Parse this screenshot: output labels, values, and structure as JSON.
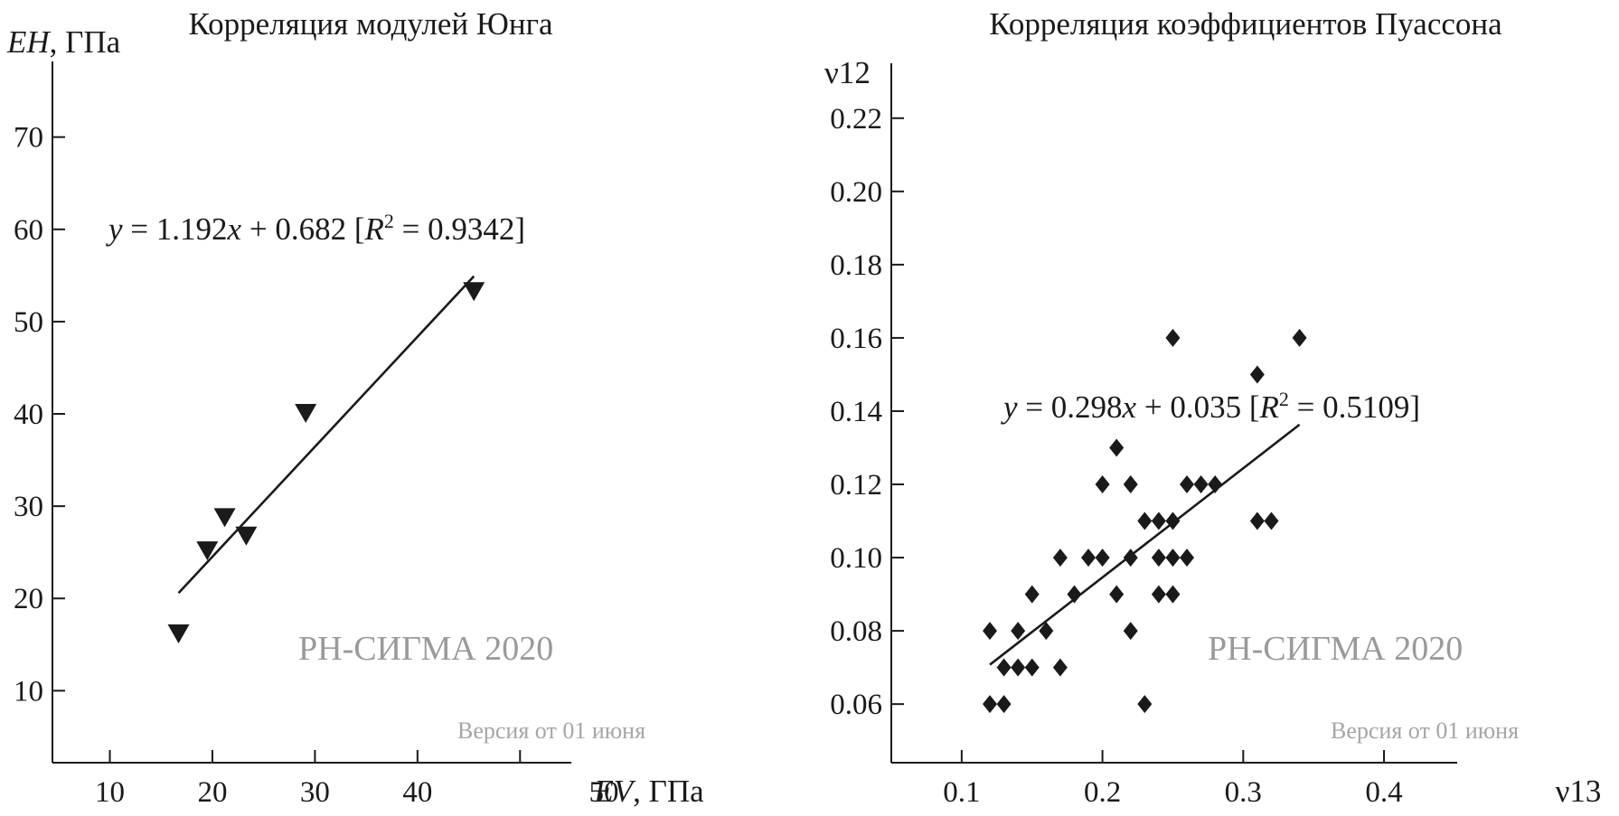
{
  "chart_data": [
    {
      "type": "scatter",
      "title": "Корреляция модулей Юнга",
      "ylabel": {
        "italic": "EH",
        "unit": ", ГПа"
      },
      "xlabel": {
        "italic": "EV",
        "unit": ", ГПа"
      },
      "xlim": [
        4.4,
        55
      ],
      "ylim": [
        2.2,
        78
      ],
      "x_ticks": [
        "10",
        "20",
        "30",
        "40",
        "50"
      ],
      "y_ticks": [
        "10",
        "20",
        "30",
        "40",
        "50",
        "60",
        "70"
      ],
      "x_tick_values": [
        10,
        20,
        30,
        40,
        50
      ],
      "y_tick_values": [
        10,
        20,
        30,
        40,
        50,
        60,
        70
      ],
      "marker": "triangle-down",
      "color": "#1a1a1a",
      "points": [
        {
          "x": 16.7,
          "y": 16.2
        },
        {
          "x": 19.5,
          "y": 25.2
        },
        {
          "x": 21.2,
          "y": 28.8
        },
        {
          "x": 23.3,
          "y": 26.8
        },
        {
          "x": 29.1,
          "y": 40.1
        },
        {
          "x": 45.5,
          "y": 53.3
        }
      ],
      "trend": {
        "slope": 1.192,
        "intercept": 0.682,
        "x_range": [
          16.7,
          45.5
        ]
      },
      "equation": {
        "y": "y",
        "body1": " = 1.192",
        "x": "x",
        "body2": " + 0.682 [",
        "r": "R",
        "sup": "2",
        "body3": " = 0.9342]"
      },
      "watermark": "РН-СИГМА 2020",
      "version": "Версия от 01 июня"
    },
    {
      "type": "scatter",
      "title": "Корреляция коэффициентов Пуассона",
      "ylabel": "ν12",
      "xlabel": "ν13",
      "xlim": [
        0.05,
        0.452
      ],
      "ylim": [
        0.044,
        0.235
      ],
      "x_ticks": [
        "0.1",
        "0.2",
        "0.3",
        "0.4"
      ],
      "y_ticks": [
        "0.06",
        "0.08",
        "0.10",
        "0.12",
        "0.14",
        "0.16",
        "0.18",
        "0.20",
        "0.22"
      ],
      "x_tick_values": [
        0.1,
        0.2,
        0.3,
        0.4
      ],
      "y_tick_values": [
        0.06,
        0.08,
        0.1,
        0.12,
        0.14,
        0.16,
        0.18,
        0.2,
        0.22
      ],
      "marker": "diamond",
      "color": "#1a1a1a",
      "points": [
        {
          "x": 0.12,
          "y": 0.08
        },
        {
          "x": 0.12,
          "y": 0.06
        },
        {
          "x": 0.13,
          "y": 0.07
        },
        {
          "x": 0.13,
          "y": 0.06
        },
        {
          "x": 0.14,
          "y": 0.08
        },
        {
          "x": 0.14,
          "y": 0.07
        },
        {
          "x": 0.15,
          "y": 0.09
        },
        {
          "x": 0.15,
          "y": 0.07
        },
        {
          "x": 0.16,
          "y": 0.08
        },
        {
          "x": 0.17,
          "y": 0.1
        },
        {
          "x": 0.17,
          "y": 0.07
        },
        {
          "x": 0.18,
          "y": 0.09
        },
        {
          "x": 0.19,
          "y": 0.1
        },
        {
          "x": 0.2,
          "y": 0.12
        },
        {
          "x": 0.2,
          "y": 0.1
        },
        {
          "x": 0.21,
          "y": 0.13
        },
        {
          "x": 0.21,
          "y": 0.09
        },
        {
          "x": 0.22,
          "y": 0.12
        },
        {
          "x": 0.22,
          "y": 0.1
        },
        {
          "x": 0.22,
          "y": 0.08
        },
        {
          "x": 0.23,
          "y": 0.11
        },
        {
          "x": 0.23,
          "y": 0.06
        },
        {
          "x": 0.24,
          "y": 0.11
        },
        {
          "x": 0.24,
          "y": 0.1
        },
        {
          "x": 0.24,
          "y": 0.09
        },
        {
          "x": 0.25,
          "y": 0.16
        },
        {
          "x": 0.25,
          "y": 0.11
        },
        {
          "x": 0.25,
          "y": 0.1
        },
        {
          "x": 0.25,
          "y": 0.09
        },
        {
          "x": 0.26,
          "y": 0.12
        },
        {
          "x": 0.26,
          "y": 0.1
        },
        {
          "x": 0.27,
          "y": 0.12
        },
        {
          "x": 0.28,
          "y": 0.12
        },
        {
          "x": 0.31,
          "y": 0.15
        },
        {
          "x": 0.31,
          "y": 0.11
        },
        {
          "x": 0.32,
          "y": 0.11
        },
        {
          "x": 0.34,
          "y": 0.16
        }
      ],
      "trend": {
        "slope": 0.298,
        "intercept": 0.035,
        "x_range": [
          0.12,
          0.34
        ]
      },
      "equation": {
        "y": "y",
        "body1": " = 0.298",
        "x": "x",
        "body2": " + 0.035 [",
        "r": "R",
        "sup": "2",
        "body3": " = 0.5109]"
      },
      "watermark": "РН-СИГМА 2020",
      "version": "Версия от 01 июня"
    }
  ]
}
